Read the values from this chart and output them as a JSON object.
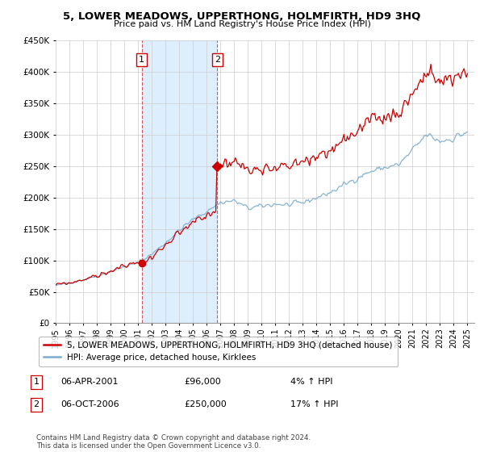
{
  "title": "5, LOWER MEADOWS, UPPERTHONG, HOLMFIRTH, HD9 3HQ",
  "subtitle": "Price paid vs. HM Land Registry's House Price Index (HPI)",
  "legend_line1": "5, LOWER MEADOWS, UPPERTHONG, HOLMFIRTH, HD9 3HQ (detached house)",
  "legend_line2": "HPI: Average price, detached house, Kirklees",
  "transaction1_date": "06-APR-2001",
  "transaction1_price": "£96,000",
  "transaction1_hpi": "4% ↑ HPI",
  "transaction2_date": "06-OCT-2006",
  "transaction2_price": "£250,000",
  "transaction2_hpi": "17% ↑ HPI",
  "footer": "Contains HM Land Registry data © Crown copyright and database right 2024.\nThis data is licensed under the Open Government Licence v3.0.",
  "property_color": "#cc0000",
  "hpi_color": "#7aadcf",
  "highlight_color": "#ddeeff",
  "transaction1_x": 2001.27,
  "transaction2_x": 2006.77,
  "ylim_min": 0,
  "ylim_max": 450000,
  "xlim_min": 1995.0,
  "xlim_max": 2025.5
}
